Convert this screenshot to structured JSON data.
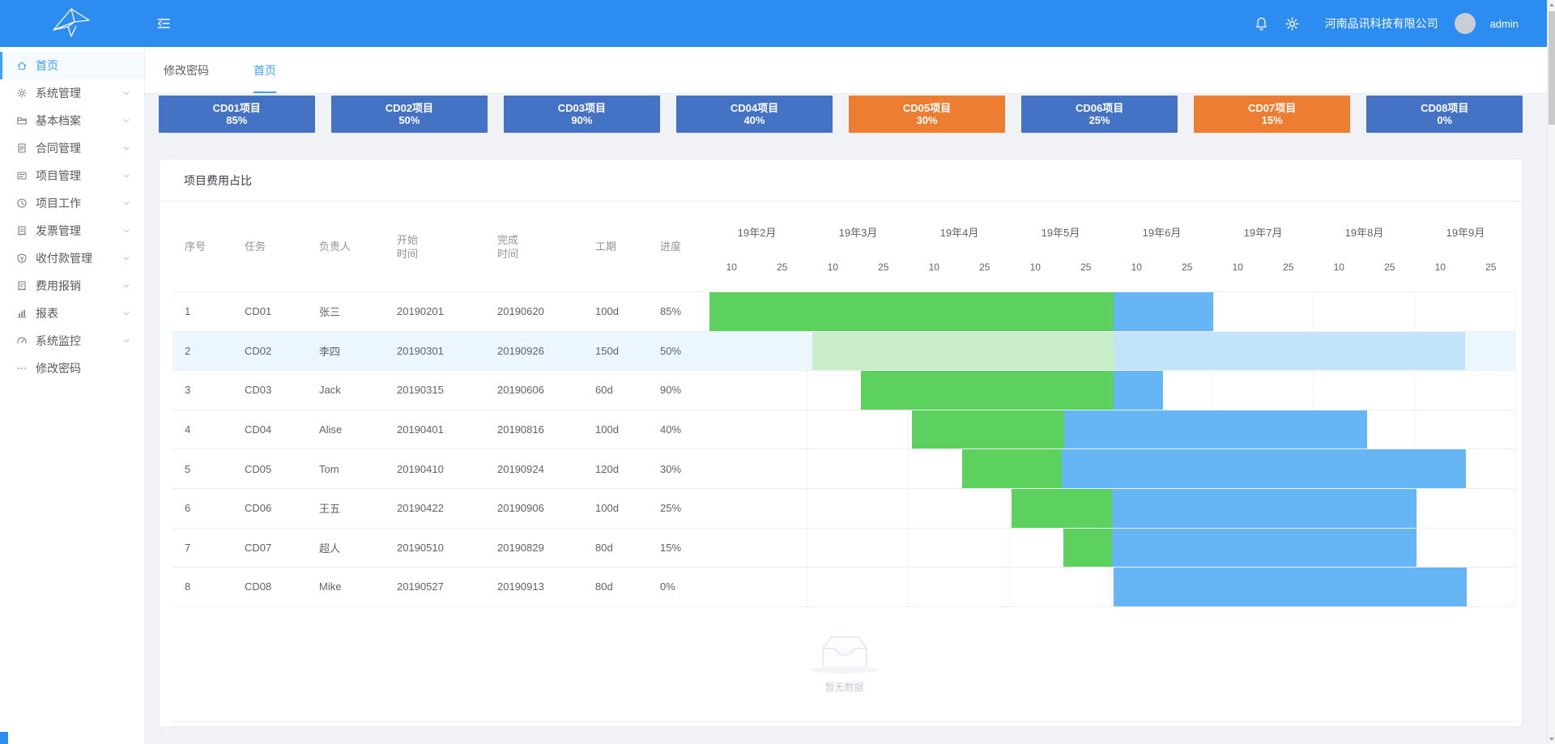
{
  "topbar": {
    "company": "河南品讯科技有限公司",
    "user": "admin"
  },
  "tabs": {
    "items": [
      {
        "id": "change-password",
        "label": "修改密码",
        "active": false
      },
      {
        "id": "home",
        "label": "首页",
        "active": true
      }
    ]
  },
  "sidebar": {
    "items": [
      {
        "id": "home",
        "label": "首页",
        "icon": "home-icon",
        "has_children": false,
        "active": true
      },
      {
        "id": "system-mgmt",
        "label": "系统管理",
        "icon": "gear-icon",
        "has_children": true,
        "active": false
      },
      {
        "id": "basic-archives",
        "label": "基本档案",
        "icon": "folder-icon",
        "has_children": true,
        "active": false
      },
      {
        "id": "contract-mgmt",
        "label": "合同管理",
        "icon": "contract-icon",
        "has_children": true,
        "active": false
      },
      {
        "id": "project-mgmt",
        "label": "项目管理",
        "icon": "project-icon",
        "has_children": true,
        "active": false
      },
      {
        "id": "project-work",
        "label": "项目工作",
        "icon": "clock-icon",
        "has_children": true,
        "active": false
      },
      {
        "id": "invoice-mgmt",
        "label": "发票管理",
        "icon": "invoice-icon",
        "has_children": true,
        "active": false
      },
      {
        "id": "payment-mgmt",
        "label": "收付款管理",
        "icon": "payment-icon",
        "has_children": true,
        "active": false
      },
      {
        "id": "expense-claim",
        "label": "费用报销",
        "icon": "expense-icon",
        "has_children": true,
        "active": false
      },
      {
        "id": "reports",
        "label": "报表",
        "icon": "report-icon",
        "has_children": true,
        "active": false
      },
      {
        "id": "system-monitor",
        "label": "系统监控",
        "icon": "monitor-icon",
        "has_children": true,
        "active": false
      },
      {
        "id": "change-password",
        "label": "修改密码",
        "icon": "ellipsis-icon",
        "has_children": false,
        "active": false
      }
    ]
  },
  "cards": {
    "items": [
      {
        "title": "CD01项目",
        "percent": "85%",
        "color": "#4472c4"
      },
      {
        "title": "CD02项目",
        "percent": "50%",
        "color": "#4472c4"
      },
      {
        "title": "CD03项目",
        "percent": "90%",
        "color": "#4472c4"
      },
      {
        "title": "CD04项目",
        "percent": "40%",
        "color": "#4472c4"
      },
      {
        "title": "CD05项目",
        "percent": "30%",
        "color": "#ed7d31"
      },
      {
        "title": "CD06项目",
        "percent": "25%",
        "color": "#4472c4"
      },
      {
        "title": "CD07项目",
        "percent": "15%",
        "color": "#ed7d31"
      },
      {
        "title": "CD08项目",
        "percent": "0%",
        "color": "#4472c4"
      }
    ]
  },
  "panel": {
    "title": "项目费用占比"
  },
  "chart_data": {
    "type": "table",
    "subtype": "gantt",
    "title": "项目费用占比",
    "columns": [
      {
        "key": "seq",
        "label": "序号"
      },
      {
        "key": "task",
        "label": "任务"
      },
      {
        "key": "owner",
        "label": "负责人"
      },
      {
        "key": "start",
        "label": "开始\n时间"
      },
      {
        "key": "finish",
        "label": "完成\n时间"
      },
      {
        "key": "duration",
        "label": "工期"
      },
      {
        "key": "progress",
        "label": "进度"
      }
    ],
    "months": [
      "19年2月",
      "19年3月",
      "19年4月",
      "19年5月",
      "19年6月",
      "19年7月",
      "19年8月",
      "19年9月"
    ],
    "tick_labels": [
      "10",
      "25"
    ],
    "rows": [
      {
        "seq": "1",
        "task": "CD01",
        "owner": "张三",
        "start": "20190201",
        "finish": "20190620",
        "duration": "100d",
        "progress": "85%",
        "bar": {
          "start_pct": 0.4,
          "split_pct": 50.3,
          "end_pct": 62.6,
          "muted": false
        }
      },
      {
        "seq": "2",
        "task": "CD02",
        "owner": "李四",
        "start": "20190301",
        "finish": "20190926",
        "duration": "150d",
        "progress": "50%",
        "bar": {
          "start_pct": 13.1,
          "split_pct": 50.4,
          "end_pct": 93.7,
          "muted": true
        }
      },
      {
        "seq": "3",
        "task": "CD03",
        "owner": "Jack",
        "start": "20190315",
        "finish": "20190606",
        "duration": "60d",
        "progress": "90%",
        "bar": {
          "start_pct": 19.1,
          "split_pct": 50.3,
          "end_pct": 56.4,
          "muted": false
        }
      },
      {
        "seq": "4",
        "task": "CD04",
        "owner": "Alise",
        "start": "20190401",
        "finish": "20190816",
        "duration": "100d",
        "progress": "40%",
        "bar": {
          "start_pct": 25.4,
          "split_pct": 44.2,
          "end_pct": 81.6,
          "muted": false
        }
      },
      {
        "seq": "5",
        "task": "CD05",
        "owner": "Tom",
        "start": "20190410",
        "finish": "20190924",
        "duration": "120d",
        "progress": "30%",
        "bar": {
          "start_pct": 31.6,
          "split_pct": 43.9,
          "end_pct": 93.8,
          "muted": false
        }
      },
      {
        "seq": "6",
        "task": "CD06",
        "owner": "王五",
        "start": "20190422",
        "finish": "20190906",
        "duration": "100d",
        "progress": "25%",
        "bar": {
          "start_pct": 37.7,
          "split_pct": 50.1,
          "end_pct": 87.7,
          "muted": false
        }
      },
      {
        "seq": "7",
        "task": "CD07",
        "owner": "超人",
        "start": "20190510",
        "finish": "20190829",
        "duration": "80d",
        "progress": "15%",
        "bar": {
          "start_pct": 44.1,
          "split_pct": 50.1,
          "end_pct": 87.7,
          "muted": false
        }
      },
      {
        "seq": "8",
        "task": "CD08",
        "owner": "Mike",
        "start": "20190527",
        "finish": "20190913",
        "duration": "80d",
        "progress": "0%",
        "bar": {
          "start_pct": 50.3,
          "split_pct": 50.3,
          "end_pct": 93.9,
          "muted": false
        }
      }
    ],
    "colors": {
      "done": "#5dd15d",
      "remaining": "#66b5f4",
      "done_muted": "#c9ecc9",
      "remaining_muted": "#c2e3fa",
      "highlight_row_bg": "#ebf6fe"
    },
    "empty_text": "暂无数据"
  }
}
